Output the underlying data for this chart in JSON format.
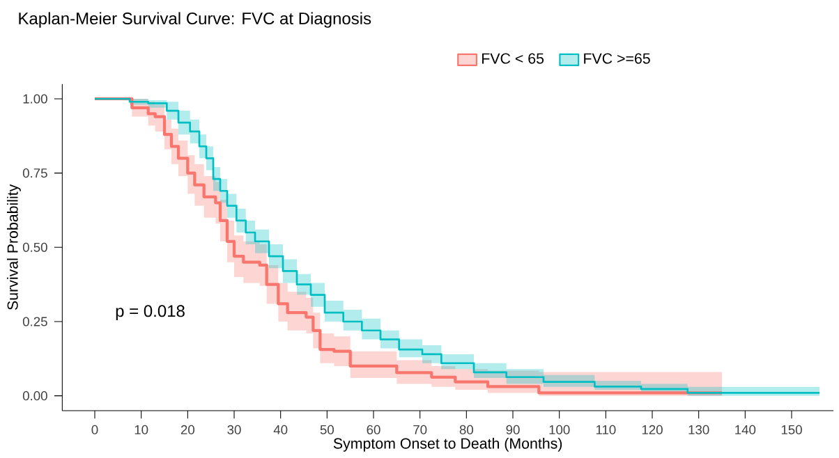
{
  "chart_data": {
    "type": "step",
    "title": "Kaplan-Meier Survival Curve: FVC at Diagnosis",
    "xlabel": "Symptom Onset to Death (Months)",
    "ylabel": "Survival Probability",
    "xlim": [
      -7,
      159
    ],
    "ylim": [
      -0.05,
      1.05
    ],
    "xticks": [
      0,
      10,
      20,
      30,
      40,
      50,
      60,
      70,
      80,
      90,
      100,
      110,
      120,
      130,
      140,
      150
    ],
    "yticks": [
      {
        "value": 0,
        "label": "0.00"
      },
      {
        "value": 0.25,
        "label": "0.25"
      },
      {
        "value": 0.5,
        "label": "0.50"
      },
      {
        "value": 0.75,
        "label": "0.75"
      },
      {
        "value": 1,
        "label": "1.00"
      }
    ],
    "grid": false,
    "legend": "top",
    "annotations": [
      "p = 0.018"
    ],
    "series": [
      {
        "name": "FVC < 65",
        "color": "#f8766d",
        "x": [
          0,
          8,
          11.5,
          13,
          15,
          16.5,
          18,
          20,
          21.5,
          23.5,
          26,
          27,
          28.5,
          30,
          32,
          35.5,
          37,
          39.5,
          41.5,
          45.5,
          47,
          48.5,
          51.5,
          55,
          65,
          72.5,
          77.6,
          84.6,
          95.6,
          135
        ],
        "values": [
          1,
          0.97,
          0.95,
          0.94,
          0.88,
          0.84,
          0.8,
          0.75,
          0.71,
          0.67,
          0.65,
          0.59,
          0.52,
          0.47,
          0.45,
          0.44,
          0.375,
          0.31,
          0.28,
          0.265,
          0.22,
          0.156,
          0.15,
          0.1,
          0.078,
          0.063,
          0.047,
          0.031,
          0.01,
          0.01
        ],
        "lower": [
          1,
          0.94,
          0.91,
          0.89,
          0.83,
          0.78,
          0.74,
          0.68,
          0.64,
          0.6,
          0.58,
          0.52,
          0.45,
          0.4,
          0.38,
          0.37,
          0.31,
          0.25,
          0.22,
          0.21,
          0.16,
          0.11,
          0.1,
          0.06,
          0.04,
          0.03,
          0.02,
          0.01,
          0,
          0
        ],
        "upper": [
          1,
          1,
          0.99,
          0.98,
          0.93,
          0.9,
          0.86,
          0.81,
          0.78,
          0.74,
          0.72,
          0.66,
          0.59,
          0.54,
          0.52,
          0.51,
          0.44,
          0.38,
          0.35,
          0.33,
          0.28,
          0.21,
          0.2,
          0.15,
          0.12,
          0.1,
          0.09,
          0.085,
          0.08,
          0.08
        ]
      },
      {
        "name": "FVC >=65",
        "color": "#00bfc4",
        "x": [
          0,
          7.5,
          11.5,
          15.5,
          18,
          20.5,
          22.5,
          24,
          25.5,
          27,
          28.5,
          30.5,
          32.5,
          34.5,
          37.5,
          40.5,
          43.5,
          46.5,
          49.5,
          53.5,
          57.5,
          61.5,
          65.5,
          70.5,
          74.6,
          81.6,
          88.6,
          96.6,
          107.6,
          117.6,
          127.6,
          156
        ],
        "values": [
          1,
          0.99,
          0.985,
          0.96,
          0.92,
          0.89,
          0.84,
          0.8,
          0.73,
          0.69,
          0.64,
          0.59,
          0.55,
          0.52,
          0.47,
          0.42,
          0.375,
          0.34,
          0.28,
          0.25,
          0.22,
          0.19,
          0.156,
          0.14,
          0.11,
          0.079,
          0.063,
          0.047,
          0.031,
          0.023,
          0.01,
          0.01
        ],
        "lower": [
          1,
          0.98,
          0.97,
          0.93,
          0.88,
          0.85,
          0.8,
          0.76,
          0.69,
          0.65,
          0.6,
          0.55,
          0.51,
          0.48,
          0.43,
          0.38,
          0.34,
          0.3,
          0.25,
          0.22,
          0.19,
          0.16,
          0.13,
          0.11,
          0.09,
          0.06,
          0.04,
          0.03,
          0.02,
          0.01,
          0,
          0
        ],
        "upper": [
          1,
          1,
          0.995,
          0.99,
          0.96,
          0.93,
          0.88,
          0.84,
          0.77,
          0.73,
          0.68,
          0.63,
          0.59,
          0.56,
          0.51,
          0.46,
          0.41,
          0.38,
          0.32,
          0.29,
          0.26,
          0.22,
          0.19,
          0.17,
          0.14,
          0.11,
          0.09,
          0.07,
          0.05,
          0.04,
          0.03,
          0.03
        ]
      }
    ]
  }
}
